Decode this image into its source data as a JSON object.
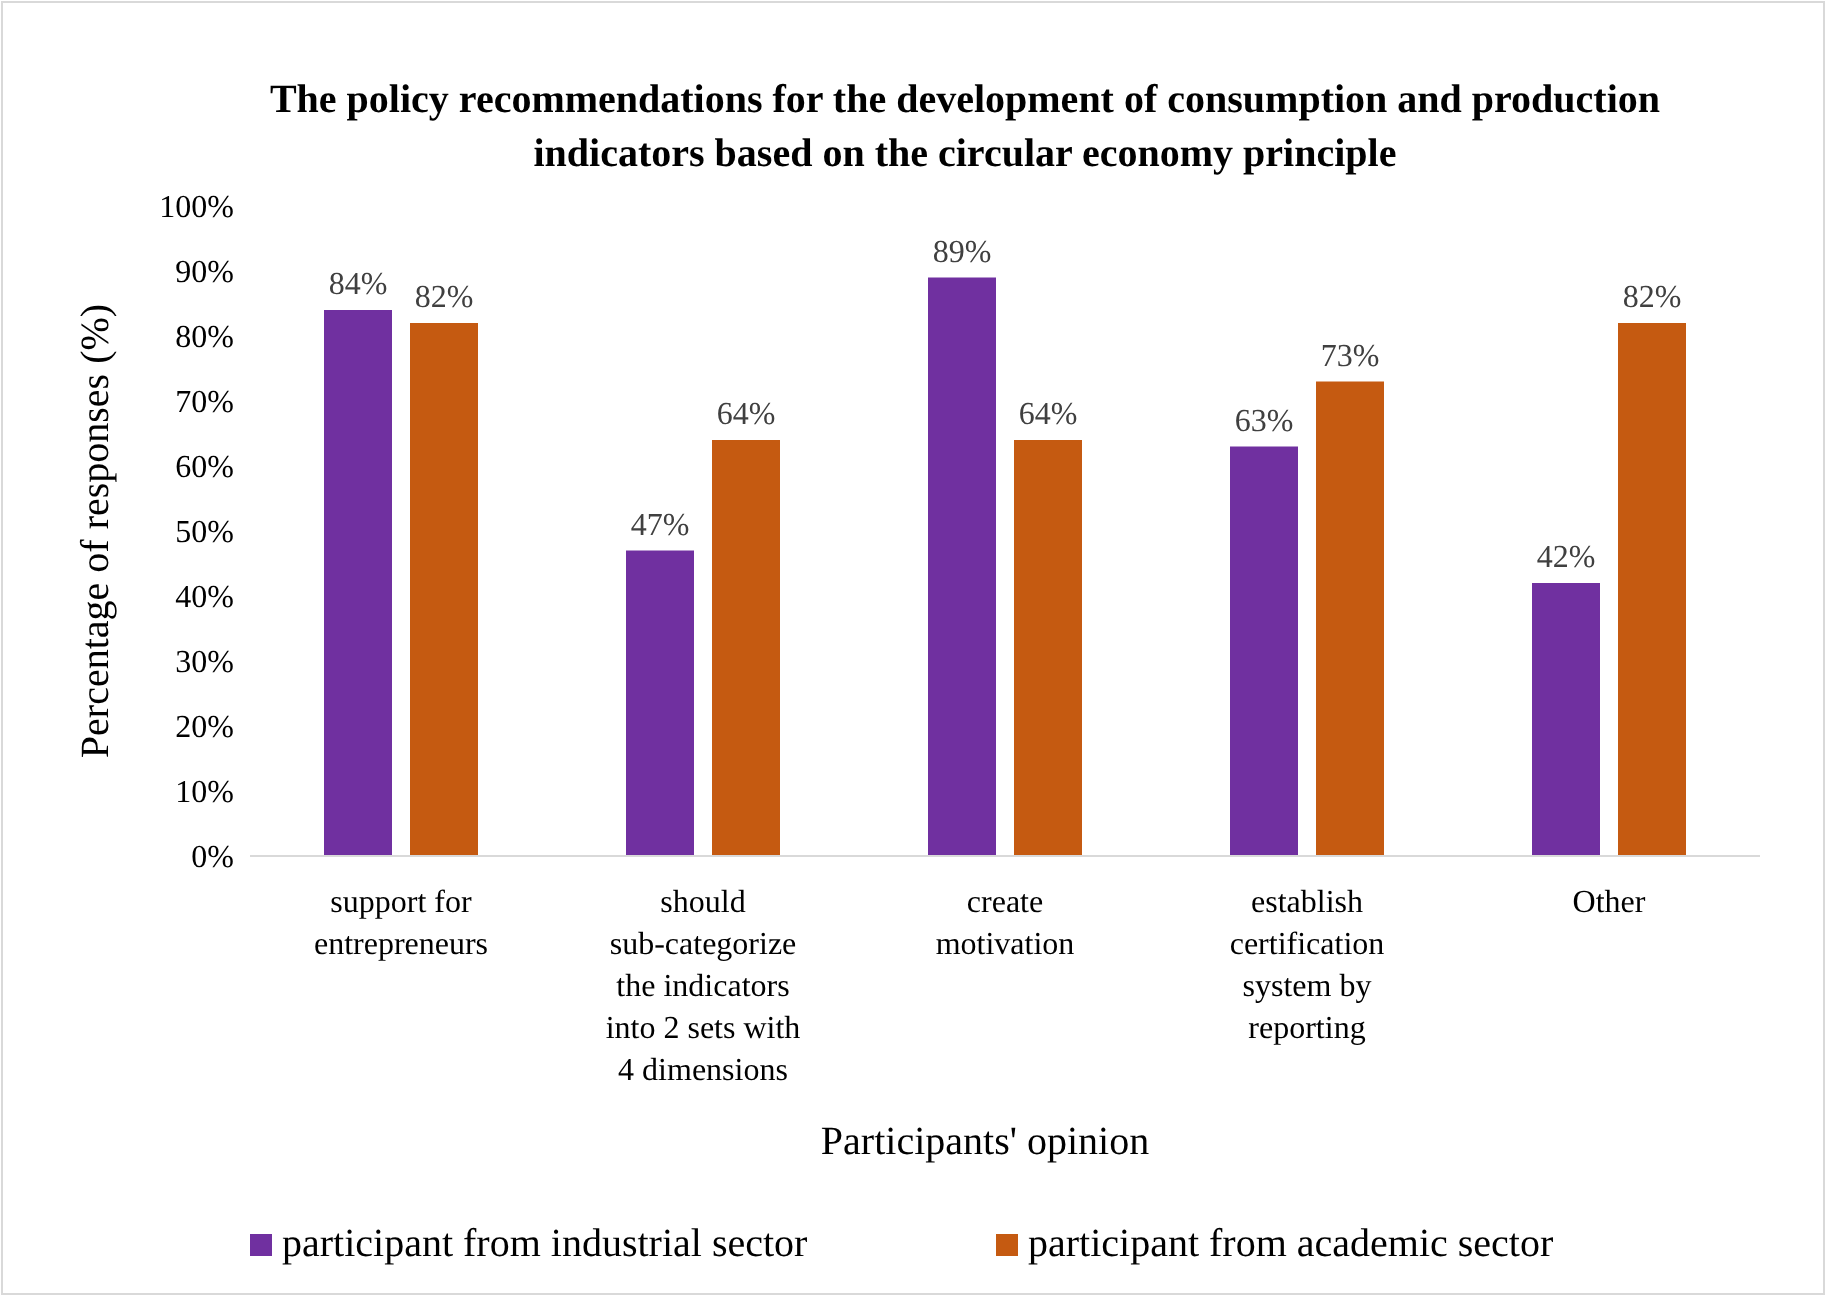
{
  "chart_data": {
    "type": "bar",
    "title": "The policy recommendations for the development of consumption and production indicators based on the circular economy principle",
    "xlabel": "Participants' opinion",
    "ylabel": "Percentage of responses (%)",
    "categories": [
      "support for entrepreneurs",
      "should sub-categorize the indicators into 2 sets with 4 dimensions",
      "create motivation",
      "establish certification system by reporting",
      "Other"
    ],
    "series": [
      {
        "name": "participant from industrial sector",
        "color": "#7030a0",
        "values": [
          84,
          47,
          89,
          63,
          42
        ],
        "value_labels": [
          "84%",
          "47%",
          "89%",
          "63%",
          "42%"
        ]
      },
      {
        "name": "participant from academic sector",
        "color": "#c55a11",
        "values": [
          82,
          64,
          64,
          73,
          82
        ],
        "value_labels": [
          "82%",
          "64%",
          "64%",
          "73%",
          "82%"
        ]
      }
    ],
    "ylim": [
      0,
      100
    ],
    "yticks": [
      {
        "value": 0,
        "label": "0%"
      },
      {
        "value": 10,
        "label": "10%"
      },
      {
        "value": 20,
        "label": "20%"
      },
      {
        "value": 30,
        "label": "30%"
      },
      {
        "value": 40,
        "label": "40%"
      },
      {
        "value": 50,
        "label": "50%"
      },
      {
        "value": 60,
        "label": "60%"
      },
      {
        "value": 70,
        "label": "70%"
      },
      {
        "value": 80,
        "label": "80%"
      },
      {
        "value": 90,
        "label": "90%"
      },
      {
        "value": 100,
        "label": "100%"
      }
    ],
    "grid": false,
    "legend": "bottom"
  }
}
